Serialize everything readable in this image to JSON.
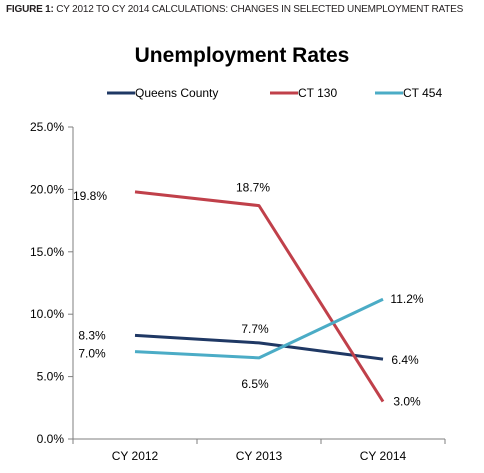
{
  "caption": {
    "lead": "FIGURE 1:",
    "text": "CY 2012 TO CY 2014 CALCULATIONS: CHANGES IN SELECTED UNEMPLOYMENT RATES"
  },
  "chart_data": {
    "type": "line",
    "title": "Unemployment Rates",
    "xlabel": "",
    "ylabel": "",
    "categories": [
      "CY 2012",
      "CY 2013",
      "CY 2014"
    ],
    "ylim": [
      0,
      25
    ],
    "yticks": [
      "0.0%",
      "5.0%",
      "10.0%",
      "15.0%",
      "20.0%",
      "25.0%"
    ],
    "legend_position": "top",
    "grid": false,
    "series": [
      {
        "name": "Queens County",
        "color": "#1f3864",
        "values": [
          8.3,
          7.7,
          6.4
        ],
        "labels": [
          "8.3%",
          "7.7%",
          "6.4%"
        ]
      },
      {
        "name": "CT 130",
        "color": "#c0404a",
        "values": [
          19.8,
          18.7,
          3.0
        ],
        "labels": [
          "19.8%",
          "18.7%",
          "3.0%"
        ]
      },
      {
        "name": "CT 454",
        "color": "#4bacc6",
        "values": [
          7.0,
          6.5,
          11.2
        ],
        "labels": [
          "7.0%",
          "6.5%",
          "11.2%"
        ]
      }
    ]
  }
}
